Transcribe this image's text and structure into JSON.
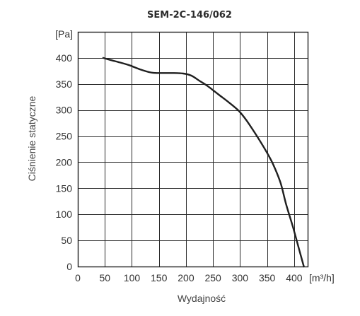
{
  "chart_data": {
    "type": "line",
    "title": "SEM-2C-146/062",
    "xlabel": "Wydajność",
    "ylabel": "Ciśnienie statyczne",
    "x_unit": "[m³/h]",
    "y_unit": "[Pa]",
    "xlim": [
      0,
      425
    ],
    "ylim": [
      0,
      450
    ],
    "x_ticks": [
      0,
      50,
      100,
      150,
      200,
      250,
      300,
      350,
      400
    ],
    "y_ticks": [
      0,
      50,
      100,
      150,
      200,
      250,
      300,
      350,
      400
    ],
    "grid": true,
    "series": [
      {
        "x": [
          47,
          60,
          75,
          95,
          115,
          135,
          150,
          175,
          195,
          210,
          225,
          240,
          260,
          280,
          298,
          312,
          330,
          350,
          362,
          375,
          385,
          398,
          410,
          418
        ],
        "y": [
          400,
          396,
          392,
          386,
          378,
          372,
          371,
          371,
          370,
          366,
          356,
          346,
          330,
          314,
          298,
          280,
          252,
          218,
          194,
          160,
          120,
          75,
          30,
          0
        ]
      }
    ]
  },
  "colors": {
    "line": "#1f1f1f",
    "grid": "#2a2a2a",
    "text": "#333333"
  }
}
